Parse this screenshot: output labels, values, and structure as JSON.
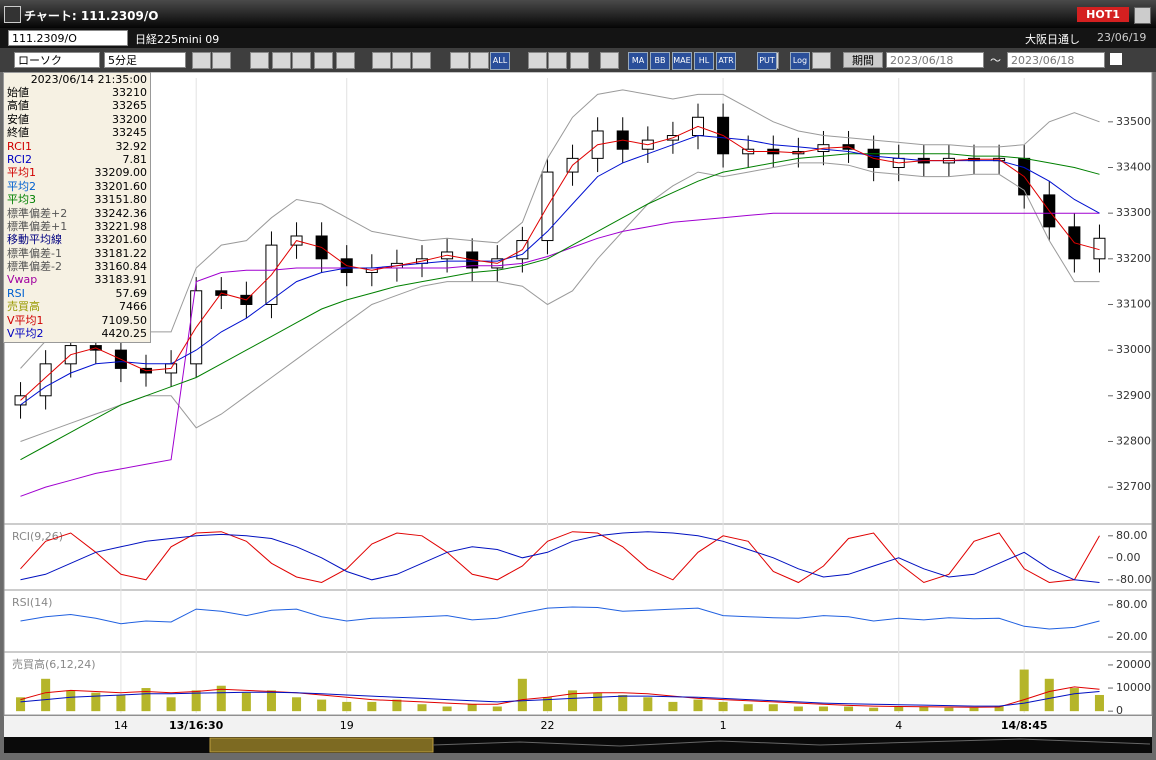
{
  "window": {
    "title": "チャート: 111.2309/O",
    "badge": "HOT1"
  },
  "toolbar": {
    "symbol": "111.2309/O",
    "name": "日経225mini 09",
    "chart_style": "ローソク",
    "interval": "5分足",
    "session": "大阪日通し",
    "date": "23/06/19",
    "period_button": "期間",
    "from": "2023/06/18",
    "separator": "～",
    "to": "2023/06/18",
    "icons": [
      "ALL",
      "MA",
      "BB",
      "MAE",
      "HL",
      "ATR",
      "PUT",
      "Log"
    ]
  },
  "info_panel": {
    "datetime": "2023/06/14 21:35:00",
    "rows": [
      {
        "label": "始値",
        "value": "33210",
        "color": "#000000"
      },
      {
        "label": "高値",
        "value": "33265",
        "color": "#000000"
      },
      {
        "label": "安値",
        "value": "33200",
        "color": "#000000"
      },
      {
        "label": "終値",
        "value": "33245",
        "color": "#000000"
      },
      {
        "label": "RCI1",
        "value": "32.92",
        "color": "#d00000"
      },
      {
        "label": "RCI2",
        "value": "7.81",
        "color": "#0000c0"
      },
      {
        "label": "平均1",
        "value": "33209.00",
        "color": "#d00000"
      },
      {
        "label": "平均2",
        "value": "33201.60",
        "color": "#0060d0"
      },
      {
        "label": "平均3",
        "value": "33151.80",
        "color": "#008000"
      },
      {
        "label": "標準偏差+2",
        "value": "33242.36",
        "color": "#555555"
      },
      {
        "label": "標準偏差+1",
        "value": "33221.98",
        "color": "#555555"
      },
      {
        "label": "移動平均線",
        "value": "33201.60",
        "color": "#000080"
      },
      {
        "label": "標準偏差-1",
        "value": "33181.22",
        "color": "#555555"
      },
      {
        "label": "標準偏差-2",
        "value": "33160.84",
        "color": "#555555"
      },
      {
        "label": "Vwap",
        "value": "33183.91",
        "color": "#a000a0"
      },
      {
        "label": "RSI",
        "value": "57.69",
        "color": "#0060d0"
      },
      {
        "label": "売買高",
        "value": "7466",
        "color": "#999900"
      },
      {
        "label": "V平均1",
        "value": "7109.50",
        "color": "#d00000"
      },
      {
        "label": "V平均2",
        "value": "4420.25",
        "color": "#0000c0"
      }
    ]
  },
  "chart_data": [
    {
      "type": "candlestick",
      "categories": [
        null,
        null,
        null,
        null,
        "14",
        null,
        null,
        "13/16:30",
        null,
        null,
        null,
        null,
        null,
        "19",
        null,
        null,
        null,
        null,
        null,
        null,
        null,
        "22",
        null,
        null,
        null,
        null,
        null,
        null,
        "1",
        null,
        null,
        null,
        null,
        null,
        null,
        "4",
        null,
        null,
        null,
        null,
        "14/8:45",
        null,
        null,
        null
      ],
      "open": [
        32880,
        32900,
        32970,
        33010,
        33000,
        32960,
        32950,
        32970,
        33130,
        33120,
        33100,
        33230,
        33250,
        33200,
        33170,
        33180,
        33190,
        33200,
        33215,
        33180,
        33200,
        33240,
        33390,
        33420,
        33480,
        33440,
        33460,
        33470,
        33510,
        33430,
        33440,
        33430,
        33435,
        33450,
        33440,
        33400,
        33420,
        33410,
        33420,
        33415,
        33420,
        33340,
        33270,
        33200
      ],
      "high": [
        32930,
        33000,
        33040,
        33040,
        33030,
        32990,
        33000,
        33160,
        33160,
        33150,
        33260,
        33280,
        33280,
        33230,
        33210,
        33220,
        33230,
        33245,
        33245,
        33230,
        33270,
        33420,
        33450,
        33510,
        33510,
        33490,
        33500,
        33540,
        33540,
        33470,
        33470,
        33465,
        33480,
        33480,
        33470,
        33450,
        33450,
        33450,
        33450,
        33450,
        33450,
        33370,
        33300,
        33275
      ],
      "low": [
        32850,
        32870,
        32940,
        32970,
        32930,
        32920,
        32920,
        32940,
        33090,
        33070,
        33070,
        33200,
        33170,
        33140,
        33140,
        33150,
        33160,
        33170,
        33150,
        33150,
        33170,
        33210,
        33360,
        33390,
        33410,
        33410,
        33430,
        33440,
        33400,
        33400,
        33400,
        33400,
        33405,
        33410,
        33370,
        33370,
        33380,
        33380,
        33385,
        33385,
        33310,
        33240,
        33170,
        33170
      ],
      "close": [
        32900,
        32970,
        33010,
        33000,
        32960,
        32950,
        32970,
        33130,
        33120,
        33100,
        33230,
        33250,
        33200,
        33170,
        33180,
        33190,
        33200,
        33215,
        33180,
        33200,
        33240,
        33390,
        33420,
        33480,
        33440,
        33460,
        33470,
        33510,
        33430,
        33440,
        33430,
        33435,
        33450,
        33440,
        33400,
        33420,
        33410,
        33420,
        33415,
        33420,
        33340,
        33270,
        33200,
        33245
      ],
      "series": [
        {
          "color": "#9a9a9a",
          "values": [
            32960,
            33020,
            33060,
            33080,
            33060,
            33040,
            33040,
            33180,
            33230,
            33240,
            33290,
            33330,
            33320,
            33290,
            33260,
            33250,
            33240,
            33245,
            33240,
            33235,
            33280,
            33420,
            33510,
            33560,
            33570,
            33560,
            33550,
            33560,
            33560,
            33530,
            33500,
            33480,
            33470,
            33465,
            33460,
            33455,
            33450,
            33450,
            33445,
            33445,
            33450,
            33500,
            33520,
            33500
          ]
        },
        {
          "color": "#9a9a9a",
          "values": [
            32800,
            32820,
            32840,
            32860,
            32880,
            32900,
            32900,
            32830,
            32860,
            32900,
            32940,
            32980,
            33020,
            33060,
            33100,
            33120,
            33140,
            33150,
            33150,
            33150,
            33140,
            33100,
            33130,
            33200,
            33260,
            33320,
            33360,
            33390,
            33380,
            33390,
            33400,
            33410,
            33410,
            33405,
            33390,
            33385,
            33380,
            33380,
            33385,
            33385,
            33350,
            33240,
            33150,
            33150
          ]
        },
        {
          "color": "#a000d0",
          "values": [
            32680,
            32700,
            32715,
            32730,
            32740,
            32750,
            32760,
            33150,
            33170,
            33175,
            33175,
            33180,
            33180,
            33180,
            33180,
            33180,
            33180,
            33180,
            33185,
            33185,
            33190,
            33205,
            33225,
            33245,
            33260,
            33270,
            33280,
            33285,
            33290,
            33295,
            33300,
            33300,
            33300,
            33300,
            33300,
            33300,
            33300,
            33300,
            33300,
            33300,
            33300,
            33300,
            33300,
            33300
          ]
        },
        {
          "color": "#008000",
          "values": [
            32760,
            32790,
            32820,
            32850,
            32880,
            32900,
            32920,
            32940,
            32970,
            33000,
            33030,
            33060,
            33090,
            33110,
            33125,
            33140,
            33150,
            33160,
            33170,
            33175,
            33185,
            33200,
            33230,
            33260,
            33290,
            33320,
            33345,
            33370,
            33390,
            33400,
            33410,
            33420,
            33425,
            33430,
            33430,
            33430,
            33430,
            33430,
            33425,
            33425,
            33420,
            33410,
            33400,
            33385
          ]
        },
        {
          "color": "#0010d0",
          "values": [
            32880,
            32920,
            32950,
            32970,
            32975,
            32970,
            32970,
            33000,
            33040,
            33070,
            33110,
            33150,
            33170,
            33180,
            33180,
            33185,
            33190,
            33195,
            33195,
            33195,
            33210,
            33260,
            33320,
            33380,
            33410,
            33430,
            33450,
            33470,
            33465,
            33460,
            33450,
            33445,
            33440,
            33435,
            33425,
            33420,
            33415,
            33415,
            33415,
            33415,
            33400,
            33370,
            33330,
            33300
          ]
        },
        {
          "color": "#e00000",
          "values": [
            32890,
            32940,
            32990,
            33005,
            32980,
            32955,
            32960,
            33050,
            33125,
            33110,
            33165,
            33240,
            33225,
            33185,
            33175,
            33185,
            33195,
            33208,
            33198,
            33190,
            33220,
            33315,
            33405,
            33450,
            33460,
            33450,
            33465,
            33490,
            33470,
            33435,
            33435,
            33432,
            33442,
            33445,
            33420,
            33410,
            33415,
            33415,
            33418,
            33418,
            33380,
            33305,
            33235,
            33220
          ]
        }
      ],
      "ylim": [
        32628,
        33596
      ],
      "yticks": [
        32700,
        32800,
        32900,
        33000,
        33100,
        33200,
        33300,
        33400,
        33500
      ]
    },
    {
      "type": "line",
      "title": "RCI(9,26)",
      "series": [
        {
          "color": "#e00000",
          "values": [
            -40,
            60,
            90,
            20,
            -60,
            -80,
            40,
            90,
            95,
            60,
            -20,
            -70,
            -90,
            -40,
            50,
            90,
            80,
            20,
            -60,
            -80,
            -30,
            60,
            95,
            90,
            40,
            -40,
            -80,
            20,
            80,
            60,
            -50,
            -90,
            -30,
            70,
            90,
            -20,
            -90,
            -60,
            60,
            90,
            -40,
            -90,
            -80,
            80
          ]
        },
        {
          "color": "#0010c0",
          "values": [
            -80,
            -60,
            -20,
            20,
            40,
            60,
            70,
            80,
            85,
            80,
            70,
            40,
            0,
            -50,
            -80,
            -60,
            -20,
            20,
            40,
            30,
            0,
            20,
            60,
            80,
            90,
            95,
            90,
            80,
            60,
            30,
            0,
            -40,
            -70,
            -60,
            -30,
            0,
            -40,
            -70,
            -60,
            -20,
            20,
            -40,
            -80,
            -90
          ]
        }
      ],
      "ylim": [
        -110,
        112
      ],
      "yticks": [
        {
          "value": 80,
          "label": "80.00"
        },
        {
          "value": 0,
          "label": "0.00"
        },
        {
          "value": -80,
          "label": "-80.00"
        }
      ]
    },
    {
      "type": "line",
      "title": "RSI(14)",
      "series": [
        {
          "color": "#2060e0",
          "values": [
            50,
            58,
            62,
            55,
            45,
            50,
            48,
            72,
            68,
            60,
            70,
            72,
            58,
            50,
            55,
            56,
            58,
            60,
            52,
            55,
            65,
            74,
            76,
            75,
            68,
            70,
            72,
            74,
            60,
            58,
            56,
            55,
            60,
            58,
            50,
            55,
            52,
            56,
            54,
            55,
            40,
            35,
            38,
            50
          ]
        }
      ],
      "ylim": [
        -4,
        102
      ],
      "yticks": [
        {
          "value": 80,
          "label": "80.00"
        },
        {
          "value": 20,
          "label": "20.00"
        }
      ]
    },
    {
      "type": "bar",
      "title": "売買高(6,12,24)",
      "color": "#b5b52a",
      "values": [
        6000,
        14000,
        9000,
        8000,
        7000,
        10000,
        6000,
        9000,
        11000,
        8000,
        9000,
        6000,
        5000,
        4000,
        4000,
        5000,
        3000,
        2000,
        3000,
        2000,
        14000,
        6000,
        9000,
        8000,
        7000,
        6000,
        4000,
        5000,
        4000,
        3000,
        3000,
        2000,
        2000,
        2000,
        1500,
        2000,
        2000,
        1500,
        1500,
        2000,
        18000,
        14000,
        10000,
        7000
      ],
      "series": [
        {
          "color": "#e00000",
          "values": [
            5000,
            8000,
            9000,
            8500,
            8000,
            8500,
            8000,
            8500,
            9500,
            9000,
            8500,
            8000,
            7000,
            6000,
            5000,
            4500,
            4000,
            3500,
            3000,
            3000,
            5000,
            6000,
            7500,
            8000,
            8000,
            7500,
            6500,
            5500,
            5000,
            4500,
            4000,
            3500,
            3000,
            2500,
            2200,
            2000,
            1900,
            1800,
            1700,
            1800,
            5000,
            8500,
            10500,
            9500
          ]
        },
        {
          "color": "#0010c0",
          "values": [
            4000,
            5000,
            6000,
            6500,
            7000,
            7500,
            7500,
            7800,
            8000,
            8200,
            8200,
            8000,
            7500,
            7000,
            6500,
            6000,
            5500,
            5000,
            4500,
            4000,
            4500,
            5000,
            5500,
            6000,
            6500,
            6500,
            6200,
            6000,
            5500,
            5000,
            4500,
            4000,
            3500,
            3200,
            3000,
            2800,
            2600,
            2400,
            2200,
            2200,
            3500,
            5500,
            7500,
            8500
          ]
        }
      ],
      "ylim": [
        -800,
        24300
      ],
      "yticks": [
        20000,
        10000,
        0
      ]
    }
  ]
}
